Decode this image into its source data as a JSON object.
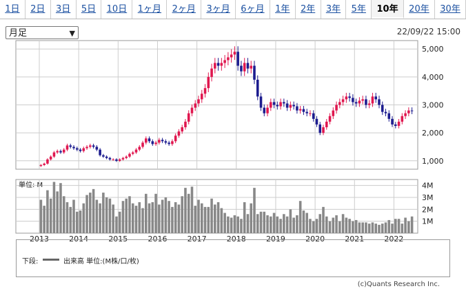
{
  "tabs": [
    {
      "label": "1日"
    },
    {
      "label": "2日"
    },
    {
      "label": "3日"
    },
    {
      "label": "5日"
    },
    {
      "label": "10日"
    },
    {
      "label": "1ヶ月"
    },
    {
      "label": "2ヶ月"
    },
    {
      "label": "3ヶ月"
    },
    {
      "label": "6ヶ月"
    },
    {
      "label": "1年"
    },
    {
      "label": "2年"
    },
    {
      "label": "3年"
    },
    {
      "label": "5年"
    },
    {
      "label": "10年",
      "active": true
    },
    {
      "label": "20年"
    },
    {
      "label": "30年"
    }
  ],
  "period_select": {
    "value": "月足"
  },
  "timestamp": "22/09/22 15:00",
  "volume_unit_label": "単位: M",
  "legend": {
    "prefix": "下段:",
    "label": "出来高 単位:(M株/口/枚)"
  },
  "copyright": "(c)Quants Research Inc.",
  "colors": {
    "up": "#e0174f",
    "down": "#1c1c8f",
    "volume": "#888888",
    "grid": "#cccccc"
  },
  "chart_data": [
    {
      "type": "candlestick",
      "title": "",
      "x_labels": [
        "2013",
        "2014",
        "2015",
        "2016",
        "2017",
        "2018",
        "2019",
        "2020",
        "2021",
        "2022"
      ],
      "ylim": [
        700,
        5300
      ],
      "y_ticks": [
        1000,
        2000,
        3000,
        4000,
        5000
      ],
      "y_tick_labels": [
        "1,000",
        "2,000",
        "3,000",
        "4,000",
        "5,000"
      ],
      "grid": true,
      "close_values": [
        850,
        900,
        1050,
        1150,
        1300,
        1350,
        1300,
        1400,
        1550,
        1500,
        1450,
        1400,
        1350,
        1450,
        1500,
        1550,
        1500,
        1400,
        1200,
        1150,
        1100,
        1050,
        1050,
        1000,
        1050,
        1100,
        1150,
        1250,
        1300,
        1400,
        1500,
        1650,
        1800,
        1700,
        1600,
        1650,
        1750,
        1700,
        1650,
        1600,
        1700,
        1900,
        2050,
        2200,
        2400,
        2700,
        2900,
        3050,
        3200,
        3400,
        3600,
        4000,
        4300,
        4500,
        4400,
        4500,
        4600,
        4700,
        4800,
        4900,
        4400,
        4200,
        4500,
        4300,
        4400,
        3900,
        3300,
        2900,
        2700,
        2900,
        3100,
        3000,
        2950,
        3100,
        3050,
        2900,
        3000,
        2950,
        2800,
        2850,
        2750,
        2700,
        2700,
        2500,
        2300,
        2000,
        2200,
        2400,
        2600,
        2800,
        3000,
        3100,
        3200,
        3300,
        3250,
        3100,
        3050,
        3150,
        3200,
        3000,
        3050,
        3300,
        3200,
        3000,
        2750,
        2700,
        2500,
        2300,
        2250,
        2400,
        2600,
        2700,
        2800,
        2780
      ]
    },
    {
      "type": "bar",
      "title": "",
      "x_labels": [
        "2013",
        "2014",
        "2015",
        "2016",
        "2017",
        "2018",
        "2019",
        "2020",
        "2021",
        "2022"
      ],
      "ylim": [
        0,
        4.5
      ],
      "y_ticks": [
        1,
        2,
        3,
        4
      ],
      "y_tick_labels": [
        "1M",
        "2M",
        "3M",
        "4M"
      ],
      "grid": true,
      "values": [
        2.8,
        2.3,
        3.6,
        2.9,
        4.3,
        3.5,
        4.2,
        3.1,
        2.6,
        2.2,
        2.8,
        1.8,
        1.9,
        2.5,
        3.2,
        3.4,
        3.7,
        2.8,
        2.5,
        3.4,
        3.0,
        2.9,
        2.4,
        1.4,
        1.8,
        2.7,
        2.9,
        3.1,
        2.5,
        2.3,
        2.6,
        2.1,
        3.3,
        2.5,
        2.6,
        3.3,
        2.4,
        2.8,
        3.0,
        2.7,
        2.2,
        2.6,
        2.4,
        3.1,
        3.8,
        3.3,
        3.9,
        2.3,
        2.8,
        2.5,
        2.2,
        2.2,
        2.9,
        2.4,
        2.6,
        2.1,
        1.7,
        1.4,
        1.3,
        1.5,
        1.4,
        1.2,
        2.6,
        1.6,
        2.5,
        3.8,
        1.6,
        1.8,
        1.8,
        1.5,
        1.4,
        1.7,
        1.4,
        1.2,
        1.6,
        1.4,
        2.0,
        1.3,
        1.5,
        2.7,
        1.9,
        1.7,
        1.2,
        1.0,
        1.2,
        1.6,
        2.2,
        1.4,
        1.0,
        1.3,
        1.5,
        1.0,
        1.6,
        1.3,
        1.2,
        1.0,
        1.1,
        0.9,
        0.9,
        0.9,
        0.8,
        0.9,
        0.8,
        0.7,
        0.8,
        0.9,
        1.1,
        0.8,
        1.2,
        1.2,
        0.8,
        1.3,
        1.0,
        1.4
      ]
    }
  ]
}
